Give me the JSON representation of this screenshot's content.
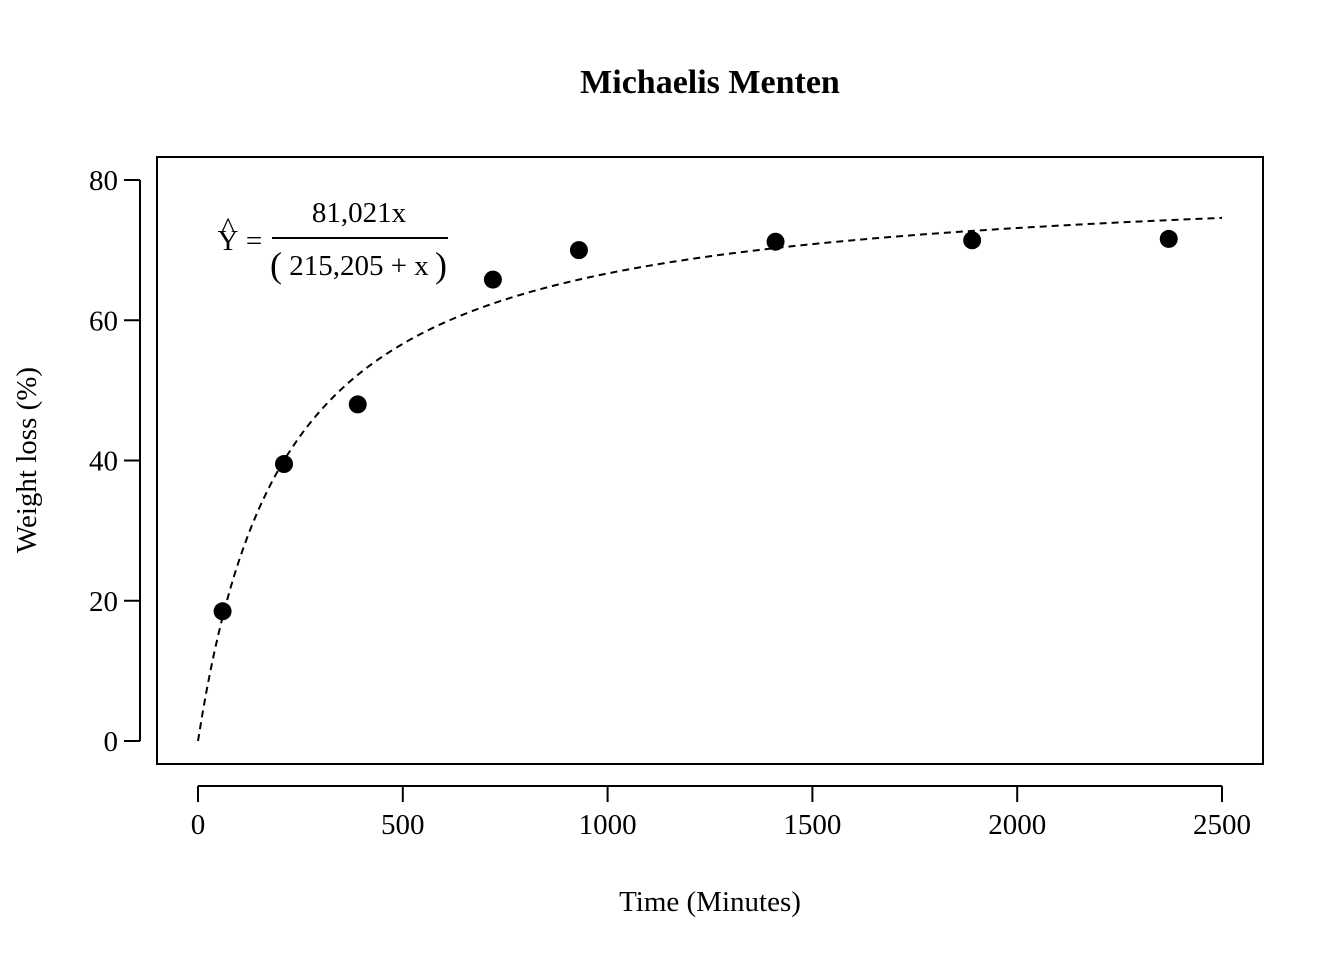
{
  "chart_data": {
    "type": "scatter",
    "title": "Michaelis Menten",
    "xlabel": "Time (Minutes)",
    "ylabel": "Weight loss (%)",
    "xlim": [
      0,
      2500
    ],
    "ylim": [
      0,
      80
    ],
    "x_ticks": [
      0,
      500,
      1000,
      1500,
      2000,
      2500
    ],
    "y_ticks": [
      0,
      20,
      40,
      60,
      80
    ],
    "x_tick_labels": [
      "0",
      "500",
      "1000",
      "1500",
      "2000",
      "2500"
    ],
    "y_tick_labels": [
      "0",
      "20",
      "40",
      "60",
      "80"
    ],
    "grid": false,
    "points": {
      "x": [
        60,
        210,
        390,
        720,
        930,
        1410,
        1890,
        2370
      ],
      "y": [
        18.5,
        39.5,
        48.0,
        65.8,
        70.0,
        71.2,
        71.4,
        71.6
      ]
    },
    "fit": {
      "style": "dashed",
      "vmax": 81.021,
      "km": 215.205,
      "x_range": [
        0,
        2500
      ]
    },
    "annotation": {
      "lhs": "Y",
      "hat": "^",
      "equals": "=",
      "numerator": "81,021x",
      "denominator": "215,205 + x",
      "open_paren": "(",
      "close_paren": ")"
    }
  }
}
